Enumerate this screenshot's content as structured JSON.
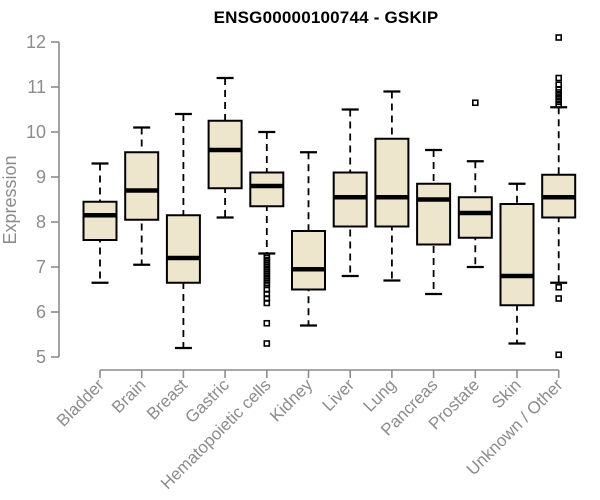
{
  "chart_data": {
    "type": "boxplot",
    "title": "ENSG00000100744 - GSKIP",
    "ylabel": "Expression",
    "xlabel": "",
    "ylim": [
      5,
      12
    ],
    "yticks": [
      5,
      6,
      7,
      8,
      9,
      10,
      11,
      12
    ],
    "grid": false,
    "legend": "none",
    "box_fill_color": "#EDE6CD",
    "box_border_color": "#000000",
    "median_color": "#000000",
    "whisker_color": "#000000",
    "axis_color": "#8c8c8c",
    "axis_text_color": "#8c8c8c",
    "title_color": "#000000",
    "categories": [
      "Bladder",
      "Brain",
      "Breast",
      "Gastric",
      "Hematopoietic cells",
      "Kidney",
      "Liver",
      "Lung",
      "Pancreas",
      "Prostate",
      "Skin",
      "Unknown / Other"
    ],
    "series": [
      {
        "category": "Bladder",
        "low": 6.65,
        "q1": 7.6,
        "median": 8.15,
        "q3": 8.45,
        "high": 9.3,
        "outliers": []
      },
      {
        "category": "Brain",
        "low": 7.05,
        "q1": 8.05,
        "median": 8.7,
        "q3": 9.55,
        "high": 10.1,
        "outliers": []
      },
      {
        "category": "Breast",
        "low": 5.2,
        "q1": 6.65,
        "median": 7.2,
        "q3": 8.15,
        "high": 10.4,
        "outliers": []
      },
      {
        "category": "Gastric",
        "low": 8.1,
        "q1": 8.75,
        "median": 9.6,
        "q3": 10.25,
        "high": 11.2,
        "outliers": []
      },
      {
        "category": "Hematopoietic cells",
        "low": 7.3,
        "q1": 8.35,
        "median": 8.8,
        "q3": 9.1,
        "high": 10.0,
        "outliers": [
          7.25,
          7.2,
          7.15,
          7.1,
          7.05,
          7.0,
          6.95,
          6.9,
          6.85,
          6.8,
          6.75,
          6.7,
          6.65,
          6.6,
          6.5,
          6.4,
          6.3,
          6.2,
          5.75,
          5.3
        ]
      },
      {
        "category": "Kidney",
        "low": 5.7,
        "q1": 6.5,
        "median": 6.95,
        "q3": 7.8,
        "high": 9.55,
        "outliers": []
      },
      {
        "category": "Liver",
        "low": 6.8,
        "q1": 7.9,
        "median": 8.55,
        "q3": 9.1,
        "high": 10.5,
        "outliers": []
      },
      {
        "category": "Lung",
        "low": 6.7,
        "q1": 7.9,
        "median": 8.55,
        "q3": 9.85,
        "high": 10.9,
        "outliers": []
      },
      {
        "category": "Pancreas",
        "low": 6.4,
        "q1": 7.5,
        "median": 8.5,
        "q3": 8.85,
        "high": 9.6,
        "outliers": []
      },
      {
        "category": "Prostate",
        "low": 7.0,
        "q1": 7.65,
        "median": 8.2,
        "q3": 8.55,
        "high": 9.35,
        "outliers": [
          10.65
        ]
      },
      {
        "category": "Skin",
        "low": 5.3,
        "q1": 6.15,
        "median": 6.8,
        "q3": 8.4,
        "high": 8.85,
        "outliers": []
      },
      {
        "category": "Unknown / Other",
        "low": 6.65,
        "q1": 8.1,
        "median": 8.55,
        "q3": 9.05,
        "high": 10.55,
        "outliers": [
          12.1,
          11.2,
          11.05,
          10.95,
          10.88,
          10.81,
          10.74,
          10.67,
          10.6,
          6.55,
          6.3,
          5.05
        ]
      }
    ]
  }
}
